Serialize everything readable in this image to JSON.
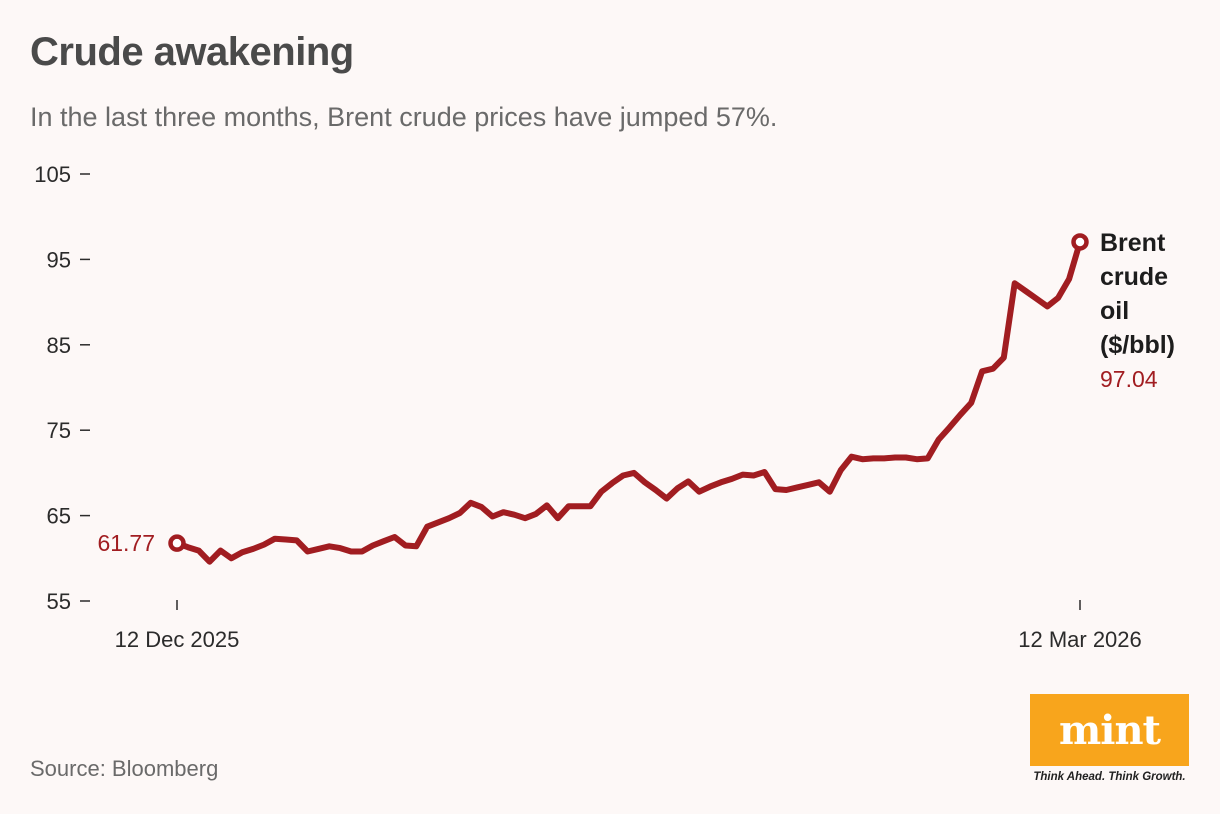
{
  "title": "Crude awakening",
  "subtitle": "In the last three months, Brent crude prices have jumped 57%.",
  "source": "Source: Bloomberg",
  "brand": {
    "logo": "mint",
    "tagline": "Think Ahead. Think Growth.",
    "color": "#f8a51c"
  },
  "colors": {
    "series": "#a11d21",
    "background": "#fdf8f7",
    "axis_text": "#2b2b2b"
  },
  "chart_data": {
    "type": "line",
    "title": "Crude awakening",
    "subtitle": "In the last three months, Brent crude prices have jumped 57%.",
    "xlabel": "",
    "ylabel": "",
    "ylim": [
      55,
      105
    ],
    "y_ticks": [
      55,
      65,
      75,
      85,
      95,
      105
    ],
    "x_tick_labels": [
      "12 Dec 2025",
      "12 Mar 2026"
    ],
    "grid": false,
    "series": [
      {
        "name": "Brent crude oil ($/bbl)",
        "name_lines": [
          "Brent",
          "crude",
          "oil",
          "($/bbl)"
        ],
        "start_label": "61.77",
        "end_label": "97.04",
        "values": [
          61.77,
          61.3,
          60.9,
          59.6,
          60.9,
          60.0,
          60.7,
          61.1,
          61.6,
          62.3,
          62.2,
          62.1,
          60.8,
          61.1,
          61.4,
          61.2,
          60.8,
          60.8,
          61.5,
          62.0,
          62.5,
          61.5,
          61.4,
          63.7,
          64.2,
          64.7,
          65.3,
          66.5,
          66.0,
          64.9,
          65.4,
          65.1,
          64.7,
          65.2,
          66.2,
          64.7,
          66.1,
          66.1,
          66.1,
          67.8,
          68.8,
          69.7,
          70.0,
          68.9,
          68.0,
          67.0,
          68.2,
          69.0,
          67.8,
          68.4,
          68.9,
          69.3,
          69.8,
          69.7,
          70.1,
          68.1,
          68.0,
          68.3,
          68.6,
          68.9,
          67.8,
          70.3,
          71.9,
          71.6,
          71.7,
          71.7,
          71.8,
          71.8,
          71.6,
          71.7,
          73.9,
          75.3,
          76.8,
          78.2,
          81.9,
          82.2,
          83.5,
          92.2,
          91.3,
          90.4,
          89.5,
          90.5,
          92.7,
          97.04
        ]
      }
    ]
  }
}
